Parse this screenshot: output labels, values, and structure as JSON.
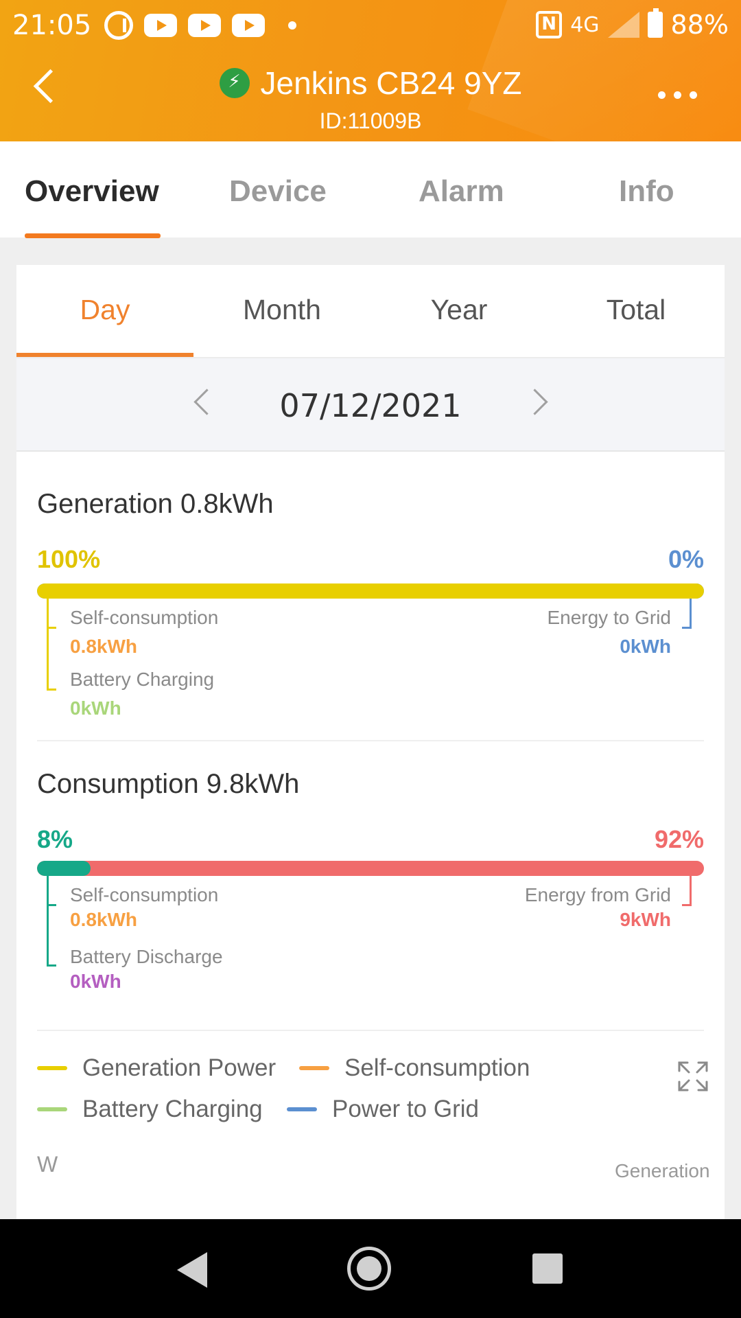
{
  "status_bar": {
    "time": "21:05",
    "network": "4G",
    "battery": "88%",
    "icons_left": [
      "g-app-icon",
      "youtube-icon",
      "youtube-icon",
      "youtube-icon",
      "notification-dot-icon"
    ],
    "icons_right": [
      "nfc-icon",
      "signal-icon",
      "battery-charging-icon"
    ]
  },
  "header": {
    "title": "Jenkins CB24 9YZ",
    "id": "ID:11009B",
    "status_color": "#2e9e43"
  },
  "main_tabs": [
    {
      "label": "Overview",
      "active": true
    },
    {
      "label": "Device",
      "active": false
    },
    {
      "label": "Alarm",
      "active": false
    },
    {
      "label": "Info",
      "active": false
    }
  ],
  "period_tabs": [
    {
      "label": "Day",
      "active": true
    },
    {
      "label": "Month",
      "active": false
    },
    {
      "label": "Year",
      "active": false
    },
    {
      "label": "Total",
      "active": false
    }
  ],
  "date": "07/12/2021",
  "generation": {
    "title": "Generation 0.8kWh",
    "left_pct": "100%",
    "right_pct": "0%",
    "fill_fraction": 1.0,
    "self_consumption_label": "Self-consumption",
    "self_consumption_value": "0.8kWh",
    "battery_label": "Battery Charging",
    "battery_value": "0kWh",
    "grid_label": "Energy to Grid",
    "grid_value": "0kWh"
  },
  "consumption": {
    "title": "Consumption 9.8kWh",
    "left_pct": "8%",
    "right_pct": "92%",
    "fill_fraction": 0.08,
    "self_consumption_label": "Self-consumption",
    "self_consumption_value": "0.8kWh",
    "battery_label": "Battery Discharge",
    "battery_value": "0kWh",
    "grid_label": "Energy from Grid",
    "grid_value": "9kWh"
  },
  "legend": [
    {
      "label": "Generation Power",
      "color": "#e8cf00"
    },
    {
      "label": "Self-consumption",
      "color": "#f7a042"
    },
    {
      "label": "Battery Charging",
      "color": "#a9d67a"
    },
    {
      "label": "Power to Grid",
      "color": "#5b8fd0"
    }
  ],
  "chart": {
    "y_unit": "W",
    "series_label": "Generation"
  },
  "colors": {
    "accent": "#f37a1f",
    "generation_bar": "#e8cf00",
    "generation_pct": "#e0c300",
    "export_blue": "#5b8fd0",
    "self_consumption_orange": "#f7a042",
    "battery_charging_green": "#a9d67a",
    "consumption_self_teal": "#16a888",
    "grid_red": "#f06b6b",
    "battery_discharge_purple": "#b45ec0"
  }
}
